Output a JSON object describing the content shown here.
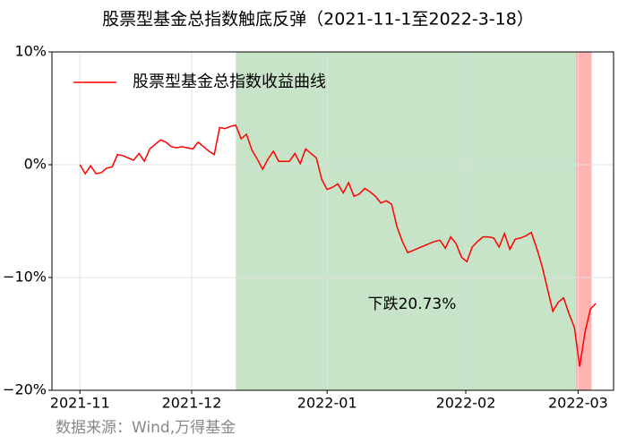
{
  "chart_data": {
    "type": "line",
    "title": "股票型基金总指数触底反弹（2021-11-1至2022-3-18）",
    "source": "数据来源：Wind,万得基金",
    "annotation": "下跌20.73%",
    "legend": "upper left",
    "grid": true,
    "series": [
      {
        "name": "股票型基金总指数收益曲线",
        "color": "#ff0000",
        "values": [
          0.0,
          -0.8,
          -0.1,
          -0.8,
          -0.7,
          -0.3,
          -0.2,
          0.9,
          0.8,
          0.6,
          0.4,
          1.0,
          0.3,
          1.4,
          1.8,
          2.2,
          2.0,
          1.6,
          1.5,
          1.6,
          1.5,
          1.4,
          2.0,
          1.6,
          1.2,
          0.9,
          3.3,
          3.2,
          3.4,
          3.5,
          2.3,
          2.7,
          1.3,
          0.5,
          -0.4,
          0.5,
          1.2,
          0.3,
          0.3,
          0.3,
          1.0,
          0.1,
          1.4,
          1.0,
          0.6,
          -1.3,
          -2.2,
          -2.0,
          -1.7,
          -2.5,
          -1.6,
          -2.8,
          -2.6,
          -2.1,
          -2.4,
          -2.8,
          -3.4,
          -3.2,
          -3.5,
          -5.5,
          -6.8,
          -7.8,
          -7.6,
          -7.4,
          -7.2,
          -7.0,
          -6.8,
          -6.7,
          -7.4,
          -6.4,
          -7.0,
          -8.2,
          -8.6,
          -7.3,
          -6.8,
          -6.4,
          -6.4,
          -6.5,
          -7.3,
          -6.1,
          -7.5,
          -6.6,
          -6.5,
          -6.3,
          -6.0,
          -7.4,
          -9.0,
          -11.0,
          -13.0,
          -12.2,
          -11.8,
          -13.2,
          -14.4,
          -17.9,
          -14.8,
          -12.8,
          -12.3
        ]
      }
    ],
    "xlim": [
      -5.2,
      99.3
    ],
    "xticks": [
      {
        "value": 0,
        "label": "2021-11"
      },
      {
        "value": 20.8,
        "label": "2021-12"
      },
      {
        "value": 46,
        "label": "2022-01"
      },
      {
        "value": 71.8,
        "label": "2022-02"
      },
      {
        "value": 92.7,
        "label": "2022-03"
      }
    ],
    "ylim": [
      -20,
      10
    ],
    "yticks": [
      {
        "value": -20,
        "label": "−20%"
      },
      {
        "value": -10,
        "label": "−10%"
      },
      {
        "value": 0,
        "label": "0%"
      },
      {
        "value": 10,
        "label": "10%"
      }
    ],
    "spans": [
      {
        "start": 29,
        "end": 92.3,
        "color": "#c8e4c8"
      },
      {
        "start": 92.3,
        "end": 95.2,
        "color": "#ffb3b3"
      }
    ]
  }
}
